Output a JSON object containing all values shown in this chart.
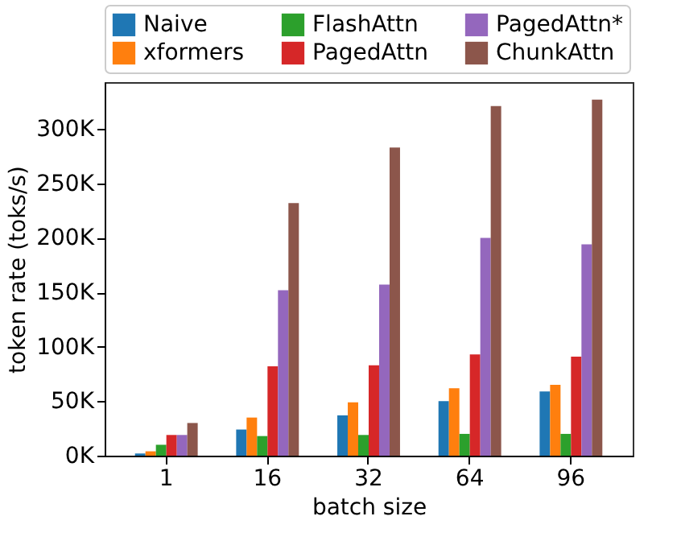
{
  "chart_data": {
    "type": "bar",
    "xlabel": "batch size",
    "ylabel": "token rate (toks/s)",
    "categories": [
      "1",
      "16",
      "32",
      "64",
      "96"
    ],
    "series": [
      {
        "name": "Naive",
        "color": "#1f77b4",
        "values": [
          2000,
          24000,
          37000,
          50000,
          59000
        ]
      },
      {
        "name": "xformers",
        "color": "#ff7f0e",
        "values": [
          4000,
          35000,
          49000,
          62000,
          65000
        ]
      },
      {
        "name": "FlashAttn",
        "color": "#2ca02c",
        "values": [
          10000,
          18000,
          19000,
          20000,
          20000
        ]
      },
      {
        "name": "PagedAttn",
        "color": "#d62728",
        "values": [
          19000,
          82000,
          83000,
          93000,
          91000
        ]
      },
      {
        "name": "PagedAttn*",
        "color": "#9467bd",
        "values": [
          19000,
          152000,
          157000,
          200000,
          194000
        ]
      },
      {
        "name": "ChunkAttn",
        "color": "#8c564b",
        "values": [
          30000,
          232000,
          283000,
          321000,
          327000
        ]
      }
    ],
    "ylim": [
      0,
      343000
    ],
    "yticks": [
      {
        "value": 0,
        "label": "0K"
      },
      {
        "value": 50000,
        "label": "50K"
      },
      {
        "value": 100000,
        "label": "100K"
      },
      {
        "value": 150000,
        "label": "150K"
      },
      {
        "value": 200000,
        "label": "200K"
      },
      {
        "value": 250000,
        "label": "250K"
      },
      {
        "value": 300000,
        "label": "300K"
      }
    ],
    "grid": false,
    "legend": "top"
  }
}
